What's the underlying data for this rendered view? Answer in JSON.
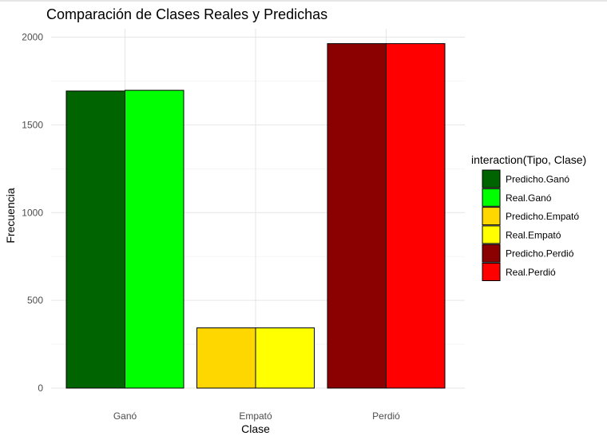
{
  "chart_data": {
    "type": "bar",
    "title": "Comparación de Clases Reales y Predichas",
    "xlabel": "Clase",
    "ylabel": "Frecuencia",
    "categories": [
      "Ganó",
      "Empató",
      "Perdió"
    ],
    "ylim": [
      0,
      2050
    ],
    "yticks": [
      0,
      500,
      1000,
      1500,
      2000
    ],
    "grid": true,
    "bars": [
      {
        "category": "Ganó",
        "tipo": "Predicho",
        "value": 1693,
        "color": "#006400"
      },
      {
        "category": "Ganó",
        "tipo": "Real",
        "value": 1697,
        "color": "#00FF00"
      },
      {
        "category": "Empató",
        "tipo": "Predicho",
        "value": 343,
        "color": "#FFD700"
      },
      {
        "category": "Empató",
        "tipo": "Real",
        "value": 343,
        "color": "#FFFF00"
      },
      {
        "category": "Perdió",
        "tipo": "Predicho",
        "value": 1963,
        "color": "#8B0000"
      },
      {
        "category": "Perdió",
        "tipo": "Real",
        "value": 1963,
        "color": "#FF0000"
      }
    ],
    "legend": {
      "title": "interaction(Tipo, Clase)",
      "placement": "right",
      "items": [
        {
          "label": "Predicho.Ganó",
          "color": "#006400"
        },
        {
          "label": "Real.Ganó",
          "color": "#00FF00"
        },
        {
          "label": "Predicho.Empató",
          "color": "#FFD700"
        },
        {
          "label": "Real.Empató",
          "color": "#FFFF00"
        },
        {
          "label": "Predicho.Perdió",
          "color": "#8B0000"
        },
        {
          "label": "Real.Perdió",
          "color": "#FF0000"
        }
      ]
    }
  }
}
